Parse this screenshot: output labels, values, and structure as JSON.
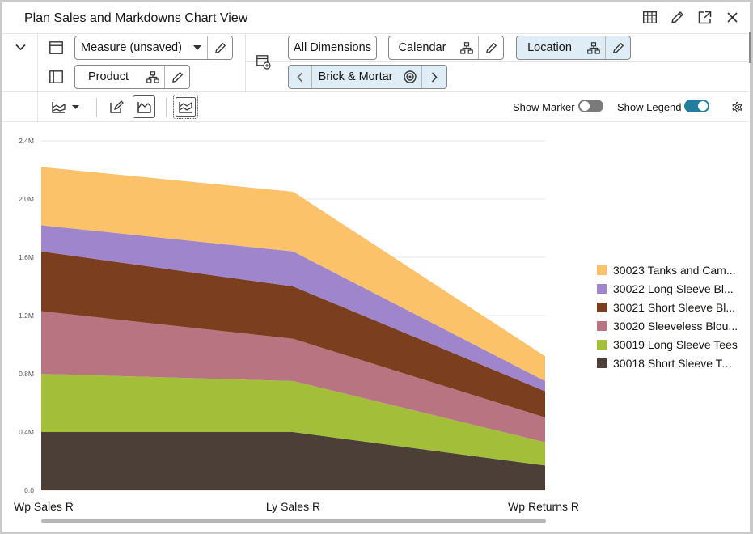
{
  "window": {
    "title": "Plan Sales and Markdowns Chart View",
    "icons": [
      "table-icon",
      "pencil-icon",
      "expand-icon",
      "close-icon"
    ]
  },
  "toolbar": {
    "measure_label": "Measure (unsaved)",
    "product_label": "Product",
    "all_dimensions_label": "All Dimensions",
    "calendar_label": "Calendar",
    "location_label": "Location",
    "brick_label": "Brick & Mortar"
  },
  "options": {
    "show_marker_label": "Show Marker",
    "show_marker_on": false,
    "show_legend_label": "Show Legend",
    "show_legend_on": true
  },
  "colors": {
    "accent": "#227e9e",
    "toggle_off": "#7a7a7a"
  },
  "chart_data": {
    "type": "area",
    "stacked": true,
    "categories": [
      "Wp Sales R",
      "Ly Sales R",
      "Wp Returns R"
    ],
    "y_ticks": [
      "0.0",
      "0.4M",
      "0.8M",
      "1.2M",
      "1.6M",
      "2.0M",
      "2.4M"
    ],
    "ylim": [
      0,
      2400000
    ],
    "grid": true,
    "legend_position": "right",
    "series": [
      {
        "name": "30018 Short Sleeve Tees",
        "color": "#4b3f37",
        "values": [
          400000,
          400000,
          170000
        ]
      },
      {
        "name": "30019 Long Sleeve Tees",
        "color": "#a3bf3a",
        "values": [
          400000,
          350000,
          160000
        ]
      },
      {
        "name": "30020 Sleeveless Blou...",
        "color": "#b87581",
        "values": [
          430000,
          290000,
          170000
        ]
      },
      {
        "name": "30021 Short Sleeve Bl...",
        "color": "#7b3f1f",
        "values": [
          410000,
          360000,
          180000
        ]
      },
      {
        "name": "30022 Long Sleeve Bl...",
        "color": "#9f85cc",
        "values": [
          180000,
          240000,
          70000
        ]
      },
      {
        "name": "30023 Tanks and Cam...",
        "color": "#fbc26a",
        "values": [
          400000,
          410000,
          170000
        ]
      }
    ]
  }
}
